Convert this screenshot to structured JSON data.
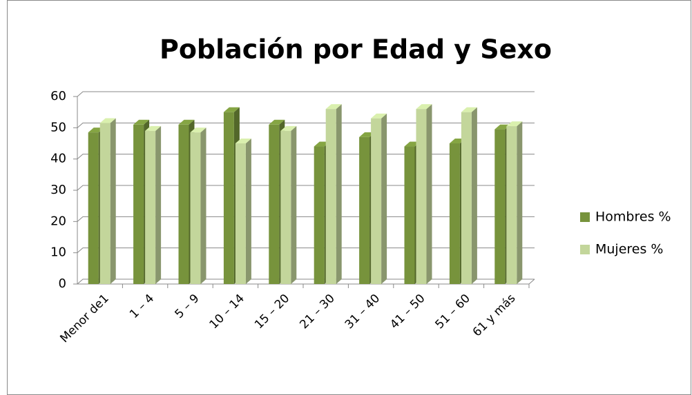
{
  "chart_data": {
    "type": "bar3d",
    "title": "Población por Edad y Sexo",
    "categories": [
      "Menor de1",
      "1 – 4",
      "5 – 9",
      "10 – 14",
      "15 – 20",
      "21 – 30",
      "31 – 40",
      "41 – 50",
      "51 – 60",
      "61 y más"
    ],
    "series": [
      {
        "name": "Hombres %",
        "color": "#77933c",
        "values": [
          48.5,
          51,
          51,
          55,
          51,
          44,
          47,
          44,
          45,
          49.5
        ]
      },
      {
        "name": "Mujeres %",
        "color": "#c3d69b",
        "values": [
          51.5,
          49,
          48.5,
          45,
          49,
          56,
          53,
          56,
          55,
          50.5
        ]
      }
    ],
    "ylim": [
      0,
      60
    ],
    "yticks": [
      0,
      10,
      20,
      30,
      40,
      50,
      60
    ],
    "grid": true,
    "legend": "right"
  }
}
